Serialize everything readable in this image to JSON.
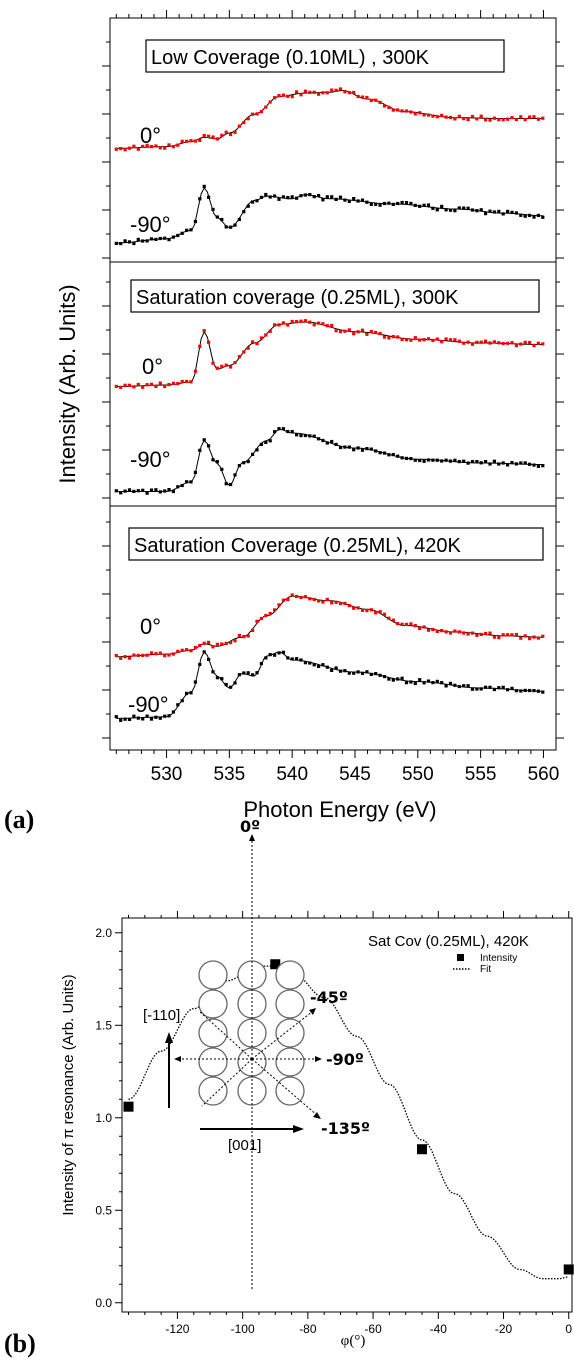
{
  "panel_a": {
    "tag": "(a)",
    "ylabel": "Intensity (Arb. Units)",
    "xlabel": "Photon Energy (eV)",
    "xticks": [
      "530",
      "535",
      "540",
      "545",
      "550",
      "555",
      "560"
    ],
    "subpanels": [
      {
        "title": "Low Coverage (0.10ML) , 300K",
        "traces": [
          {
            "label": "0°",
            "color": "#ff0000"
          },
          {
            "label": "-90°",
            "color": "#000000"
          }
        ]
      },
      {
        "title": "Saturation coverage (0.25ML), 300K",
        "traces": [
          {
            "label": "0°",
            "color": "#ff0000"
          },
          {
            "label": "-90°",
            "color": "#000000"
          }
        ]
      },
      {
        "title": "Saturation Coverage (0.25ML), 420K",
        "traces": [
          {
            "label": "0°",
            "color": "#ff0000"
          },
          {
            "label": "-90°",
            "color": "#000000"
          }
        ]
      }
    ]
  },
  "panel_b": {
    "tag": "(b)",
    "title": "Sat Cov (0.25ML), 420K",
    "ylabel": "Intensity of π resonance (Arb. Units)",
    "xlabel": "φ(°)",
    "legend": {
      "marker": "Intensity",
      "line": "Fit"
    },
    "yticks": [
      "0.0",
      "0.5",
      "1.0",
      "1.5",
      "2.0"
    ],
    "xticks": [
      "-120",
      "-100",
      "-80",
      "-60",
      "-40",
      "-20",
      "0"
    ],
    "inset": {
      "direction_vertical": "[-110]",
      "direction_horizontal": "[001]",
      "angles": [
        "0º",
        "-45º",
        "-90º",
        "-135º"
      ]
    }
  },
  "chart_data": [
    {
      "type": "line",
      "title": "",
      "xlabel": "Photon Energy (eV)",
      "ylabel": "Intensity (Arb. Units)",
      "xlim": [
        525.5,
        561
      ],
      "series": [
        {
          "name": "Low Coverage (0.10ML) , 300K - 0°",
          "x": [
            526,
            530,
            532,
            533,
            534,
            535,
            537,
            539,
            541,
            543,
            544,
            546,
            549,
            553,
            557,
            560
          ],
          "values": [
            0.02,
            0.04,
            0.1,
            0.15,
            0.13,
            0.2,
            0.42,
            0.63,
            0.67,
            0.68,
            0.7,
            0.6,
            0.45,
            0.38,
            0.37,
            0.37
          ]
        },
        {
          "name": "Low Coverage (0.10ML) , 300K - -90°",
          "x": [
            526,
            530,
            532,
            533,
            534,
            535,
            537,
            538,
            540,
            541,
            543,
            548,
            553,
            557,
            560
          ],
          "values": [
            0.0,
            0.05,
            0.15,
            0.65,
            0.3,
            0.18,
            0.5,
            0.55,
            0.52,
            0.57,
            0.52,
            0.46,
            0.4,
            0.35,
            0.32
          ]
        },
        {
          "name": "Saturation coverage (0.25ML), 300K - 0°",
          "x": [
            526,
            530,
            532,
            533,
            534,
            535,
            537,
            539,
            541,
            545,
            550,
            555,
            560
          ],
          "values": [
            0.02,
            0.04,
            0.08,
            0.75,
            0.25,
            0.3,
            0.6,
            0.85,
            0.88,
            0.75,
            0.65,
            0.6,
            0.58
          ]
        },
        {
          "name": "Saturation coverage (0.25ML), 300K - -90°",
          "x": [
            526,
            530,
            532,
            533,
            534,
            535,
            536,
            538,
            539,
            540,
            545,
            550,
            555,
            560
          ],
          "values": [
            0.02,
            0.02,
            0.15,
            0.7,
            0.4,
            0.1,
            0.4,
            0.7,
            0.85,
            0.8,
            0.6,
            0.45,
            0.4,
            0.38
          ]
        },
        {
          "name": "Saturation Coverage (0.25ML), 420K - 0°",
          "x": [
            526,
            530,
            532,
            533,
            534,
            536,
            538,
            540,
            543,
            546,
            549,
            553,
            557,
            560
          ],
          "values": [
            0.02,
            0.06,
            0.12,
            0.22,
            0.18,
            0.32,
            0.65,
            0.95,
            0.88,
            0.75,
            0.5,
            0.4,
            0.34,
            0.32
          ]
        },
        {
          "name": "Saturation Coverage (0.25ML), 420K - -90°",
          "x": [
            526,
            530,
            532,
            533,
            534,
            535,
            536,
            537,
            538,
            539,
            540,
            545,
            550,
            555,
            560
          ],
          "values": [
            0.02,
            0.04,
            0.35,
            0.85,
            0.55,
            0.4,
            0.58,
            0.55,
            0.8,
            0.85,
            0.75,
            0.6,
            0.48,
            0.4,
            0.36
          ]
        }
      ]
    },
    {
      "type": "scatter",
      "title": "Sat Cov (0.25ML), 420K",
      "xlabel": "φ(°)",
      "ylabel": "Intensity of π resonance (Arb. Units)",
      "xlim": [
        -137,
        1
      ],
      "ylim": [
        -0.05,
        2.08
      ],
      "series": [
        {
          "name": "Intensity",
          "x": [
            -135,
            -90,
            -45,
            0
          ],
          "values": [
            1.06,
            1.83,
            0.83,
            0.18
          ]
        },
        {
          "name": "Fit",
          "x": [
            -135,
            -125,
            -115,
            -105,
            -95,
            -90,
            -85,
            -75,
            -65,
            -55,
            -45,
            -35,
            -25,
            -15,
            -8,
            -3,
            0
          ],
          "values": [
            1.1,
            1.36,
            1.59,
            1.74,
            1.82,
            1.82,
            1.79,
            1.65,
            1.44,
            1.18,
            0.88,
            0.59,
            0.36,
            0.18,
            0.13,
            0.13,
            0.14
          ]
        }
      ]
    }
  ]
}
